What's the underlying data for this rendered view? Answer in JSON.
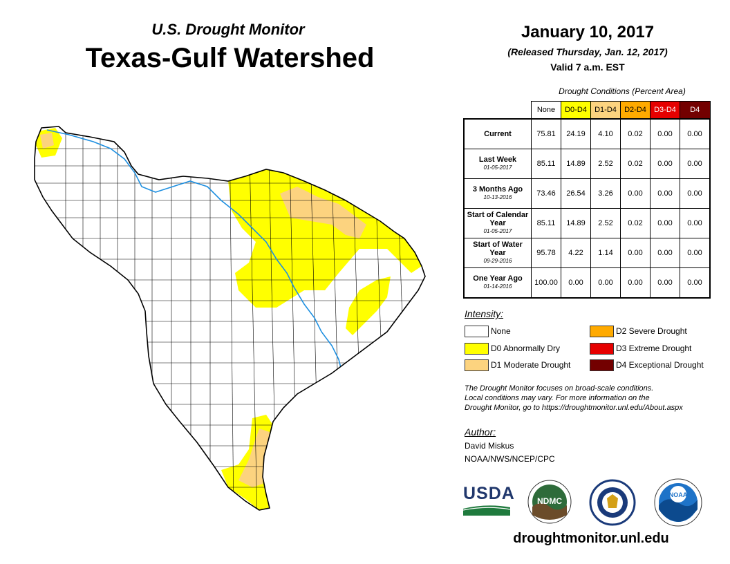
{
  "header": {
    "subtitle": "U.S. Drought Monitor",
    "title": "Texas-Gulf Watershed",
    "date": "January 10, 2017",
    "released": "(Released Thursday, Jan. 12, 2017)",
    "valid": "Valid 7 a.m. EST"
  },
  "table": {
    "caption": "Drought Conditions (Percent Area)",
    "columns": [
      "None",
      "D0-D4",
      "D1-D4",
      "D2-D4",
      "D3-D4",
      "D4"
    ],
    "rows": [
      {
        "label": "Current",
        "date": "",
        "values": [
          "75.81",
          "24.19",
          "4.10",
          "0.02",
          "0.00",
          "0.00"
        ]
      },
      {
        "label": "Last Week",
        "date": "01-05-2017",
        "values": [
          "85.11",
          "14.89",
          "2.52",
          "0.02",
          "0.00",
          "0.00"
        ]
      },
      {
        "label": "3 Months Ago",
        "date": "10-13-2016",
        "values": [
          "73.46",
          "26.54",
          "3.26",
          "0.00",
          "0.00",
          "0.00"
        ]
      },
      {
        "label": "Start of Calendar Year",
        "date": "01-05-2017",
        "values": [
          "85.11",
          "14.89",
          "2.52",
          "0.02",
          "0.00",
          "0.00"
        ]
      },
      {
        "label": "Start of Water Year",
        "date": "09-29-2016",
        "values": [
          "95.78",
          "4.22",
          "1.14",
          "0.00",
          "0.00",
          "0.00"
        ]
      },
      {
        "label": "One Year Ago",
        "date": "01-14-2016",
        "values": [
          "100.00",
          "0.00",
          "0.00",
          "0.00",
          "0.00",
          "0.00"
        ]
      }
    ]
  },
  "legend": {
    "heading": "Intensity:",
    "items": [
      {
        "label": "None",
        "color": "#ffffff"
      },
      {
        "label": "D0 Abnormally Dry",
        "color": "#ffff00"
      },
      {
        "label": "D1 Moderate Drought",
        "color": "#fcd37f"
      },
      {
        "label": "D2 Severe Drought",
        "color": "#ffaa00"
      },
      {
        "label": "D3 Extreme Drought",
        "color": "#e60000"
      },
      {
        "label": "D4 Exceptional Drought",
        "color": "#730000"
      }
    ]
  },
  "note": {
    "line1": "The Drought Monitor focuses on broad-scale conditions.",
    "line2": "Local conditions may vary. For more information on the",
    "line3": "Drought Monitor, go to https://droughtmonitor.unl.edu/About.aspx"
  },
  "author": {
    "heading": "Author:",
    "name": "David Miskus",
    "org": "NOAA/NWS/NCEP/CPC"
  },
  "logos": {
    "usda": "USDA",
    "ndmc": "NDMC",
    "noaa": "NOAA"
  },
  "website": "droughtmonitor.unl.edu"
}
